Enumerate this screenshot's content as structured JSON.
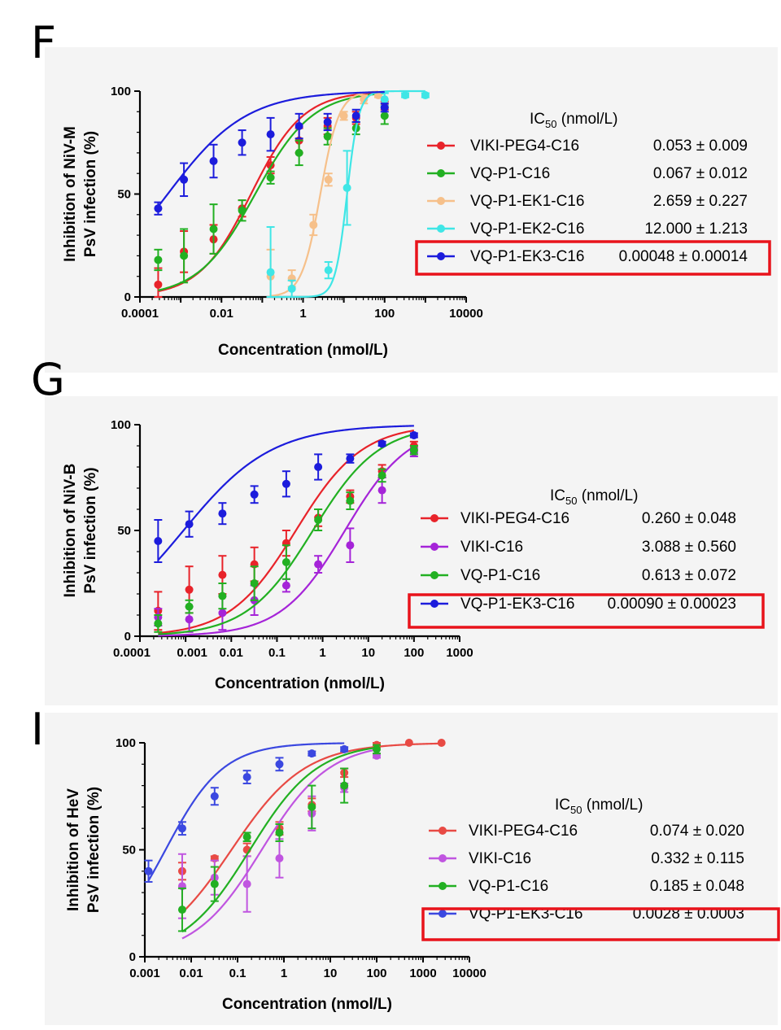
{
  "chart_data": [
    {
      "panel": "F",
      "type": "line",
      "xscale": "log",
      "xlim": [
        0.0001,
        10000
      ],
      "ylim": [
        0,
        100
      ],
      "xticks": [
        "0.0001",
        "0.01",
        "1",
        "100",
        "10000"
      ],
      "yticks": [
        "0",
        "50",
        "100"
      ],
      "xlabel": "Concentration (nmol/L)",
      "ylabel_line1": "Inhibition of NiV-M",
      "ylabel_line2": "PsV infection (%)",
      "legend_title_main": "IC",
      "legend_title_sub": "50",
      "legend_title_unit": " (nmol/L)",
      "highlighted_series": "VQ-P1-EK3-C16",
      "series": [
        {
          "name": "VIKI-PEG4-C16",
          "ic50_text": "0.053 ± 0.009",
          "color": "#e8232a",
          "ic50": 0.053,
          "hill": 0.68,
          "x": [
            0.00028,
            0.0012,
            0.0064,
            0.032,
            0.16,
            0.8,
            4,
            20,
            100
          ],
          "y": [
            6,
            22,
            28,
            43,
            64,
            76,
            83,
            87,
            93
          ],
          "err": [
            8,
            10,
            7,
            4,
            4,
            6,
            4,
            3,
            2
          ]
        },
        {
          "name": "VQ-P1-C16",
          "ic50_text": "0.067 ± 0.012",
          "color": "#22b022",
          "ic50": 0.067,
          "hill": 0.62,
          "x": [
            0.00028,
            0.0012,
            0.0064,
            0.032,
            0.16,
            0.8,
            4,
            20,
            100
          ],
          "y": [
            18,
            20,
            33,
            42,
            58,
            70,
            78,
            82,
            88
          ],
          "err": [
            5,
            13,
            12,
            5,
            3,
            6,
            4,
            3,
            4
          ]
        },
        {
          "name": "VQ-P1-EK1-C16",
          "ic50_text": "2.659 ± 0.227",
          "color": "#f6c08a",
          "ic50": 2.659,
          "hill": 1.9,
          "x": [
            0.16,
            0.53,
            1.8,
            4.2,
            10,
            31,
            70
          ],
          "y": [
            10,
            9,
            35,
            57,
            88,
            96,
            98
          ],
          "err": [
            13,
            4,
            5,
            3,
            2,
            2,
            1
          ]
        },
        {
          "name": "VQ-P1-EK2-C16",
          "ic50_text": "12.000 ± 1.213",
          "color": "#3fe6e6",
          "ic50": 12.0,
          "hill": 3.0,
          "x": [
            0.16,
            0.53,
            4.2,
            12,
            100,
            320,
            1000
          ],
          "y": [
            12,
            4,
            13,
            53,
            96,
            98,
            98
          ],
          "err": [
            22,
            4,
            4,
            18,
            3,
            1,
            1
          ]
        },
        {
          "name": "VQ-P1-EK3-C16",
          "ic50_text": "0.00048 ± 0.00014",
          "color": "#1c1cdc",
          "ic50": 0.00048,
          "hill": 0.45,
          "x": [
            0.00028,
            0.0012,
            0.0064,
            0.032,
            0.16,
            0.8,
            4,
            20,
            100
          ],
          "y": [
            43,
            57,
            66,
            75,
            79,
            83,
            85,
            88,
            92
          ],
          "err": [
            3,
            8,
            8,
            6,
            8,
            6,
            4,
            3,
            2
          ]
        }
      ]
    },
    {
      "panel": "G",
      "type": "line",
      "xscale": "log",
      "xlim": [
        0.0001,
        1000
      ],
      "ylim": [
        0,
        100
      ],
      "xticks": [
        "0.0001",
        "0.001",
        "0.01",
        "0.1",
        "1",
        "10",
        "100",
        "1000"
      ],
      "yticks": [
        "0",
        "50",
        "100"
      ],
      "xlabel": "Concentration (nmol/L)",
      "ylabel_line1": "Inhibition of NiV-B",
      "ylabel_line2": "PsV infection (%)",
      "legend_title_main": "IC",
      "legend_title_sub": "50",
      "legend_title_unit": " (nmol/L)",
      "highlighted_series": "VQ-P1-EK3-C16",
      "series": [
        {
          "name": "VIKI-PEG4-C16",
          "ic50_text": "0.260 ± 0.048",
          "color": "#e8232a",
          "ic50": 0.26,
          "hill": 0.6,
          "x": [
            0.00025,
            0.0012,
            0.0064,
            0.032,
            0.16,
            0.8,
            4,
            20,
            100
          ],
          "y": [
            12,
            22,
            29,
            34,
            44,
            56,
            66,
            78,
            90
          ],
          "err": [
            9,
            11,
            9,
            8,
            6,
            4,
            3,
            3,
            2
          ]
        },
        {
          "name": "VIKI-C16",
          "ic50_text": "3.088 ± 0.560",
          "color": "#a524d8",
          "ic50": 3.088,
          "hill": 0.62,
          "x": [
            0.00025,
            0.0012,
            0.0064,
            0.032,
            0.16,
            0.8,
            4,
            20,
            100
          ],
          "y": [
            9,
            8,
            11,
            17,
            24,
            34,
            43,
            69,
            87
          ],
          "err": [
            4,
            6,
            8,
            7,
            3,
            4,
            8,
            6,
            2
          ]
        },
        {
          "name": "VQ-P1-C16",
          "ic50_text": "0.613 ± 0.072",
          "color": "#22b022",
          "ic50": 0.613,
          "hill": 0.6,
          "x": [
            0.00025,
            0.0012,
            0.0064,
            0.032,
            0.16,
            0.8,
            4,
            20,
            100
          ],
          "y": [
            6,
            14,
            19,
            25,
            35,
            55,
            64,
            76,
            88
          ],
          "err": [
            4,
            3,
            6,
            8,
            8,
            5,
            4,
            3,
            2
          ]
        },
        {
          "name": "VQ-P1-EK3-C16",
          "ic50_text": "0.00090 ± 0.00023",
          "color": "#1c1cdc",
          "ic50": 0.0009,
          "hill": 0.45,
          "x": [
            0.00025,
            0.0012,
            0.0064,
            0.032,
            0.16,
            0.8,
            4,
            20,
            100
          ],
          "y": [
            45,
            53,
            58,
            67,
            72,
            80,
            84,
            91,
            95
          ],
          "err": [
            10,
            6,
            5,
            4,
            6,
            6,
            2,
            1,
            1
          ]
        }
      ]
    },
    {
      "panel": "I",
      "type": "line",
      "xscale": "log",
      "xlim": [
        0.001,
        10000
      ],
      "ylim": [
        0,
        100
      ],
      "xticks": [
        "0.001",
        "0.01",
        "0.1",
        "1",
        "10",
        "100",
        "1000",
        "10000"
      ],
      "yticks": [
        "0",
        "50",
        "100"
      ],
      "xlabel": "Concentration (nmol/L)",
      "ylabel_line1": "Inhibition of HeV",
      "ylabel_line2": "PsV infection (%)",
      "legend_title_main": "IC",
      "legend_title_sub": "50",
      "legend_title_unit": " (nmol/L)",
      "highlighted_series": "VQ-P1-EK3-C16",
      "series": [
        {
          "name": "VIKI-PEG4-C16",
          "ic50_text": "0.074 ± 0.020",
          "color": "#e84a44",
          "ic50": 0.074,
          "hill": 0.55,
          "x": [
            0.0064,
            0.032,
            0.16,
            0.8,
            4,
            20,
            100,
            500,
            2500
          ],
          "y": [
            40,
            46,
            50,
            60,
            71,
            86,
            99,
            100,
            100
          ],
          "err": [
            4,
            1,
            3,
            3,
            3,
            2,
            1,
            0,
            0
          ]
        },
        {
          "name": "VIKI-C16",
          "ic50_text": "0.332 ± 0.115",
          "color": "#c055e0",
          "ic50": 0.332,
          "hill": 0.6,
          "x": [
            0.0064,
            0.032,
            0.16,
            0.8,
            4,
            20,
            100
          ],
          "y": [
            33,
            37,
            34,
            46,
            67,
            79,
            94
          ],
          "err": [
            15,
            8,
            13,
            9,
            8,
            2,
            1
          ]
        },
        {
          "name": "VQ-P1-C16",
          "ic50_text": "0.185 ± 0.048",
          "color": "#22b022",
          "ic50": 0.185,
          "hill": 0.6,
          "x": [
            0.0064,
            0.032,
            0.16,
            0.8,
            4,
            20,
            100
          ],
          "y": [
            22,
            34,
            56,
            58,
            70,
            80,
            97
          ],
          "err": [
            10,
            8,
            2,
            4,
            10,
            8,
            2
          ]
        },
        {
          "name": "VQ-P1-EK3-C16",
          "ic50_text": "0.0028 ± 0.0003",
          "color": "#3b48e0",
          "ic50": 0.0028,
          "hill": 0.7,
          "x": [
            0.0012,
            0.0064,
            0.032,
            0.16,
            0.8,
            4,
            20
          ],
          "y": [
            40,
            60,
            75,
            84,
            90,
            95,
            97
          ],
          "err": [
            5,
            3,
            4,
            3,
            3,
            1,
            1
          ]
        }
      ]
    }
  ]
}
